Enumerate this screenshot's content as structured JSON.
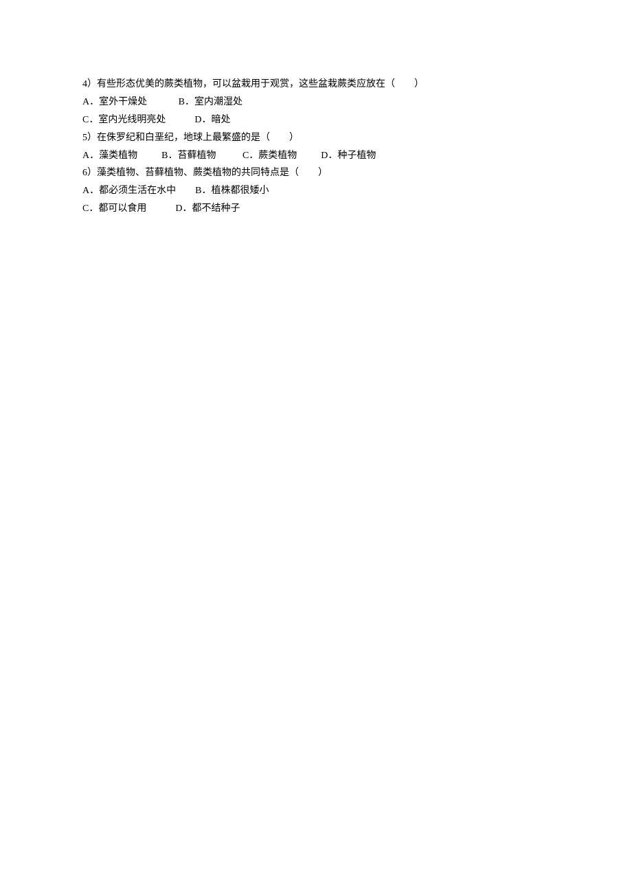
{
  "text_color": "#000000",
  "background_color": "#ffffff",
  "font_size_pt": 10.5,
  "font_family": "SimSun",
  "questions": {
    "q4": {
      "stem": "4）有些形态优美的蕨类植物，可以盆栽用于观赏，这些盆栽蕨类应放在（        ）",
      "opts_line1": "A．室外干燥处             B．室内潮湿处",
      "opts_line2": "C．室内光线明亮处            D．暗处"
    },
    "q5": {
      "stem": "5）在侏罗纪和白垩纪，地球上最繁盛的是（        ）",
      "opts_line1": "A．藻类植物          B．苔藓植物           C．蕨类植物          D．种子植物"
    },
    "q6": {
      "stem": "6）藻类植物、苔藓植物、蕨类植物的共同特点是（        ）",
      "opts_line1": "A．都必须生活在水中        B．植株都很矮小",
      "opts_line2": "C．都可以食用            D．都不结种子"
    }
  }
}
